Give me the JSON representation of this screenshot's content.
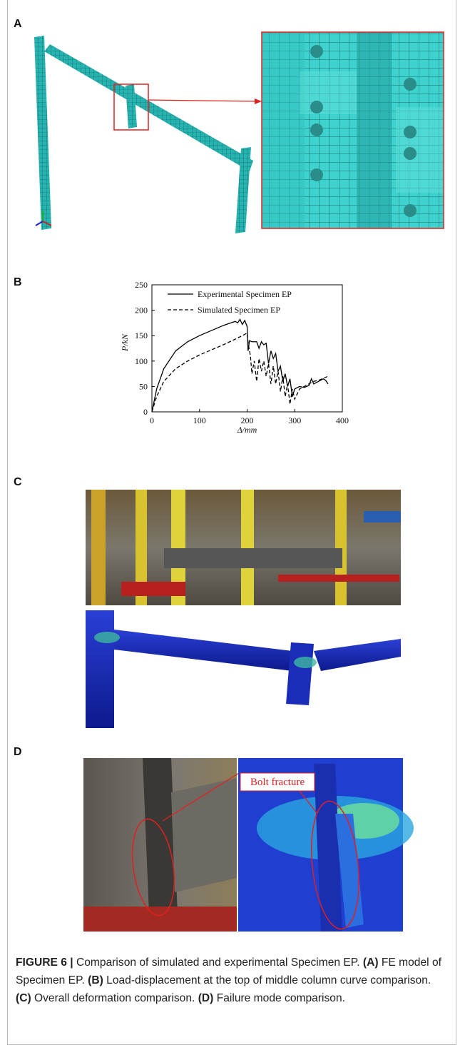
{
  "panels": [
    "A",
    "B",
    "C",
    "D"
  ],
  "chart_data": {
    "type": "line",
    "x_label": "Δ/mm",
    "y_label": "P/kN",
    "xlim": [
      0,
      400
    ],
    "xticks": [
      0,
      100,
      200,
      300,
      400
    ],
    "ylim": [
      0,
      250
    ],
    "yticks": [
      0,
      50,
      100,
      150,
      200,
      250
    ],
    "series": [
      {
        "name": "Experimental Specimen EP",
        "color": "#000000",
        "dash": "solid",
        "x": [
          0,
          10,
          25,
          50,
          75,
          100,
          125,
          150,
          175,
          180,
          185,
          190,
          195,
          200,
          202,
          205,
          210,
          220,
          225,
          230,
          235,
          240,
          245,
          250,
          255,
          260,
          265,
          270,
          275,
          280,
          285,
          290,
          295,
          300,
          310,
          320,
          330,
          335,
          340,
          350,
          360,
          365,
          370
        ],
        "values": [
          0,
          45,
          85,
          120,
          138,
          150,
          160,
          170,
          178,
          175,
          182,
          172,
          180,
          168,
          120,
          140,
          138,
          138,
          125,
          138,
          132,
          135,
          95,
          120,
          105,
          115,
          80,
          90,
          60,
          75,
          50,
          65,
          30,
          45,
          50,
          48,
          52,
          65,
          55,
          60,
          65,
          62,
          55
        ]
      },
      {
        "name": "Simulated Specimen EP",
        "color": "#000000",
        "dash": "dashed",
        "x": [
          0,
          10,
          25,
          50,
          75,
          100,
          125,
          150,
          175,
          190,
          200,
          203,
          207,
          210,
          215,
          220,
          225,
          230,
          235,
          240,
          245,
          250,
          255,
          260,
          265,
          270,
          275,
          280,
          285,
          290,
          295,
          300,
          310,
          320,
          330,
          340,
          350,
          360,
          370
        ],
        "values": [
          0,
          30,
          60,
          85,
          100,
          112,
          122,
          132,
          143,
          150,
          155,
          130,
          110,
          75,
          100,
          60,
          105,
          80,
          100,
          70,
          95,
          55,
          90,
          55,
          80,
          40,
          70,
          30,
          55,
          15,
          45,
          25,
          45,
          50,
          55,
          60,
          62,
          66,
          70
        ]
      }
    ]
  },
  "annotation": "Bolt fracture",
  "caption": [
    "FIGURE 6 |",
    "Comparison of simulated and experimental Specimen EP.",
    "(A)",
    "FE model of Specimen EP.",
    "(B)",
    "Load-displacement at the top of middle column curve comparison.",
    "(C)",
    "Overall deformation comparison.",
    "(D)",
    "Failure mode comparison."
  ]
}
